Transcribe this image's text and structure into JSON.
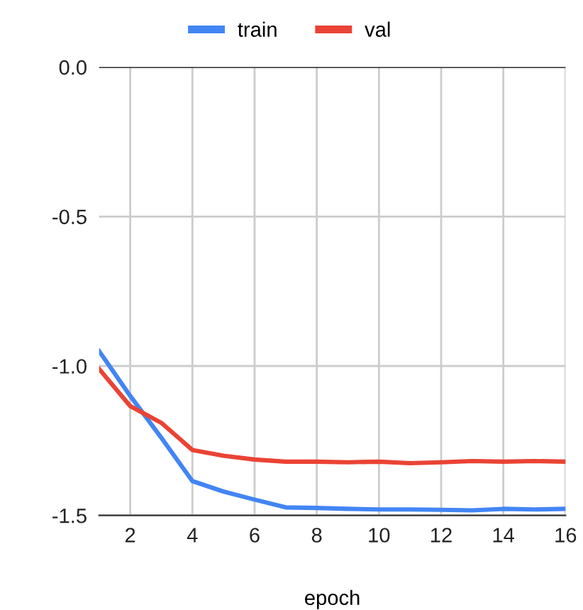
{
  "chart_data": {
    "type": "line",
    "xlabel": "epoch",
    "x": [
      1,
      2,
      3,
      4,
      5,
      6,
      7,
      8,
      9,
      10,
      11,
      12,
      13,
      14,
      15,
      16
    ],
    "series": [
      {
        "name": "train",
        "color": "#4285f4",
        "values": [
          -0.95,
          -1.1,
          -1.24,
          -1.385,
          -1.42,
          -1.447,
          -1.473,
          -1.475,
          -1.478,
          -1.48,
          -1.48,
          -1.481,
          -1.483,
          -1.478,
          -1.48,
          -1.478
        ]
      },
      {
        "name": "val",
        "color": "#ea4335",
        "values": [
          -1.01,
          -1.134,
          -1.19,
          -1.281,
          -1.3,
          -1.313,
          -1.32,
          -1.32,
          -1.322,
          -1.32,
          -1.325,
          -1.322,
          -1.318,
          -1.32,
          -1.318,
          -1.32
        ]
      }
    ],
    "xlim": [
      1,
      16
    ],
    "xticks": [
      2,
      4,
      6,
      8,
      10,
      12,
      14,
      16
    ],
    "ylim": [
      -1.5,
      0
    ],
    "yticks": [
      {
        "value": -1.5,
        "label": "-1.5"
      },
      {
        "value": -1.0,
        "label": "-1.0"
      },
      {
        "value": -0.5,
        "label": "-0.5"
      },
      {
        "value": 0,
        "label": "0.0"
      }
    ],
    "grid": true,
    "legend": "top",
    "marker": "none",
    "line_style": "solid"
  }
}
